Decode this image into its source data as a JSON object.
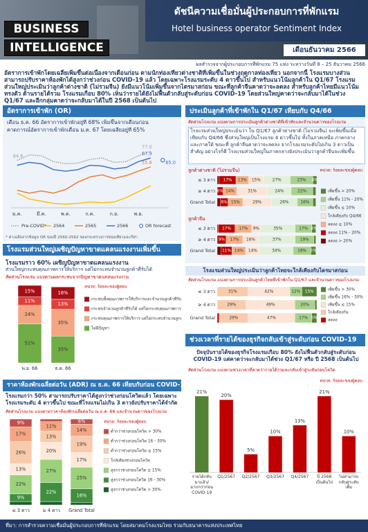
{
  "header": {
    "brand_line1": "BUSINESS",
    "brand_line2": "INTELLIGENCE",
    "title_th": "ดัชนีความเชื่อมั่นผู้ประกอบการที่พักแรม",
    "title_en": "Hotel business operator Sentiment Index",
    "month": "เดือนธันวาคม 2566",
    "survey_note": "ผลสำรวจจากผู้ประกอบการที่พักแรม 75 แห่ง ระหว่างวันที่ 8 – 25 ธันวาคม 2566"
  },
  "summary": "อัตราการเข้าพักโดยเฉลี่ยเพิ่มขึ้นต่อเนื่องจากเดือนก่อน ตามนักท่องเที่ยวต่างชาติที่เพิ่มขึ้นในช่วงฤดูกาลท่องเที่ยว นอกจากนี้ โรงแรมบางส่วนสามารถปรับราคาห้องพักได้สูงกว่าช่วงก่อน COVID-19 แล้ว โดยเฉพาะโรงแรมระดับ 4 ดาวขึ้นไป สำหรับแนวโน้มลูกค้าใน Q1/67 โรงแรมส่วนใหญ่ประเมินว่าลูกค้าต่างชาติ (ไม่รวมจีน) ยังมีแนวโน้มเพิ่มขึ้นจากไตรมาสก่อน ขณะที่ลูกค้าจีนคาดว่าจะลดลง สำหรับลูกค้าไทยมีแนวโน้มทรงตัว ด้านรายได้รวม โรงแรมเกือบ 80% เห็นว่ารายได้ยังไม่ฟื้นตัวกลับสู่ระดับก่อน COVID-19 โดยส่วนใหญ่คาดว่าจะกลับมาได้ในช่วง Q1/67 และอีกกลุ่มคาดว่าจะกลับมาได้ในปี 2568 เป็นต้นไป",
  "occupancy": {
    "heading": "อัตราการเข้าพัก (OR)",
    "lines": [
      "เดือน ธ.ค. 66 อัตราการเข้าพักอยู่ที่ 68% เพิ่มขึ้นจากเดือนก่อน",
      "คาดการณ์อัตราการเข้าพักเดือน ม.ค. 67 โดยเฉลี่ยอยู่ที่ 65%"
    ],
    "chart_data": {
      "type": "line",
      "categories": [
        "ม.ค.",
        null,
        "มี.ค.",
        null,
        "พ.ค.",
        null,
        "ก.ค.",
        null,
        "ก.ย.",
        null,
        "พ.ย.",
        null
      ],
      "ylim": [
        0,
        85
      ],
      "series": [
        {
          "name": "Pre-COVID*",
          "color": "#9e9e9e",
          "style": "dotted",
          "values": [
            64.6,
            72,
            71,
            63,
            60,
            61,
            66,
            68,
            62,
            63,
            71,
            77.0
          ],
          "value_labels": [
            "64.6",
            null,
            null,
            null,
            null,
            null,
            null,
            null,
            null,
            null,
            null,
            "77.0"
          ]
        },
        {
          "name": "2564",
          "color": "#ffc000",
          "values": [
            20,
            12,
            9,
            6,
            5,
            6,
            8,
            7,
            8,
            14,
            22,
            30
          ]
        },
        {
          "name": "2565",
          "color": "#ed7d31",
          "values": [
            24,
            20,
            23,
            20,
            25,
            35,
            42,
            45,
            40,
            44,
            50,
            55.8
          ],
          "value_labels": [
            null,
            null,
            null,
            null,
            null,
            null,
            null,
            null,
            null,
            null,
            null,
            "55.8"
          ]
        },
        {
          "name": "2566",
          "color": "#4472c4",
          "values": [
            58,
            62,
            60,
            52,
            50,
            52,
            58,
            57,
            53,
            55,
            63,
            67.9
          ],
          "value_labels": [
            null,
            null,
            null,
            null,
            null,
            null,
            null,
            null,
            null,
            null,
            null,
            "67.9"
          ]
        }
      ],
      "forecast": {
        "name": "OR forecast",
        "color": "#4472c4",
        "value": 65,
        "value_label": "65.0"
      }
    },
    "footnote": "* ค่าเฉลี่ยจากข้อมูล OR ของปี 2560-2562 ของกระทรวงการท่องเที่ยวและกีฬา"
  },
  "labor": {
    "heading": "โรงแรมส่วนใหญ่เผชิญปัญหาขาดแคลนแรงงานเพิ่มขึ้น",
    "lines": [
      "โรงแรมราว 60% เผชิญปัญหาขาดแคลนแรงงาน",
      "ส่วนใหญ่กระทบคุณภาพการให้บริการ แต่ไม่กระทบจำนวนลูกค้าที่รับได้"
    ],
    "chart_data": {
      "type": "stacked_bar",
      "title": "สัดส่วนโรงแรม แบ่งตามผลกระทบจากปัญหาขาดแคลนแรงงาน",
      "unit": "หน่วย: ร้อยละของผู้ตอบ",
      "categories": [
        "พ.ย. 66",
        "ธ.ค. 66"
      ],
      "series": [
        {
          "name": "ไม่มีปัญหา",
          "color": "#70ad47",
          "values": [
            51,
            35
          ],
          "value_labels": [
            "51%",
            "35%"
          ]
        },
        {
          "name": "กระทบคุณภาพการให้บริการ แต่ไม่กระทบจำนวนลูกค้าที่รับได้",
          "color": "#f4a582",
          "values": [
            24,
            35
          ],
          "value_labels": [
            "24%",
            "35%"
          ]
        },
        {
          "name": "กระทบจำนวนลูกค้าที่รับได้ แต่ไม่กระทบคุณภาพการให้บริการ",
          "color": "#e0403a",
          "values": [
            11,
            13
          ],
          "value_labels": [
            "11%",
            "13%"
          ]
        },
        {
          "name": "กระทบทั้งคุณภาพการให้บริการและจำนวนลูกค้าที่รับได้",
          "color": "#a50f15",
          "values": [
            15,
            16
          ],
          "value_labels": [
            "15%",
            "16%"
          ]
        }
      ]
    }
  },
  "adr": {
    "heading": "ราคาห้องพักเฉลี่ยต่อวัน (ADR) ณ ธ.ค. 66 เทียบกับก่อน COVID-19",
    "text": "โรงแรมกว่า 50% สามารถปรับราคาได้สูงกว่าช่วงก่อนโควิดแล้ว โดยเฉพาะโรงแรมระดับ 4 ดาวขึ้นไป ขณะที่โรงแรมไม่เกิน 3 ดาวยังปรับราคาได้จำกัด",
    "chart_data": {
      "type": "stacked_bar",
      "title": "สัดส่วนโรงแรม แบ่งตามราคาห้องพักเฉลี่ยต่อวัน ณ ธ.ค. 66 และจำนวนดาวของโรงแรม",
      "unit": "หน่วย: ร้อยละของผู้ตอบ",
      "categories": [
        "≤ 3 ดาว",
        "≥ 4 ดาว",
        "Grand Total"
      ],
      "series": [
        {
          "name": "สูงกว่าช่วงก่อนโควิด > 30%",
          "color": "#1e5b2e",
          "values": [
            4,
            4,
            3
          ],
          "value_labels": [
            null,
            null,
            null
          ]
        },
        {
          "name": "สูงกว่าช่วงก่อนโควิด 16 - 30%",
          "color": "#3f8f3f",
          "values": [
            9,
            22,
            16
          ],
          "value_labels": [
            "9%",
            "22%",
            "16%"
          ]
        },
        {
          "name": "สูงกว่าช่วงก่อนโควิด ≤ 15%",
          "color": "#9bd17a",
          "values": [
            22,
            27,
            25
          ],
          "value_labels": [
            "22%",
            "27%",
            "25%"
          ]
        },
        {
          "name": "ใกล้เคียงช่วงก่อนโควิด",
          "color": "#fde9d9",
          "values": [
            13,
            20,
            17
          ],
          "value_labels": [
            "13%",
            "20%",
            "17%"
          ]
        },
        {
          "name": "ต่ำกว่าช่วงก่อนโควิด ≤ 15%",
          "color": "#f8cbad",
          "values": [
            26,
            13,
            19
          ],
          "value_labels": [
            "26%",
            "13%",
            "19%"
          ]
        },
        {
          "name": "ต่ำกว่าช่วงก่อนโควิด 16 - 30%",
          "color": "#f4a582",
          "values": [
            17,
            11,
            14
          ],
          "value_labels": [
            "17%",
            "11%",
            "14%"
          ]
        },
        {
          "name": "ต่ำกว่าช่วงก่อนโควิด > 30%",
          "color": "#c0504d",
          "values": [
            9,
            3,
            6
          ],
          "value_labels": [
            "9%",
            null,
            "6%"
          ]
        }
      ]
    }
  },
  "guests": {
    "heading": "ประเมินลูกค้าที่เข้าพักใน Q1/67 เทียบกับ Q4/66",
    "text": "โรงแรมส่วนใหญ่ประเมินว่า ใน Q1/67 ลูกค้าต่างชาติ (ไม่รวมจีน) จะเพิ่มขึ้นเมื่อเทียบกับ Q4/66 ซึ่งส่วนใหญ่เป็นโรงแรม 4 ดาวขึ้นไป ทั้งในภาคเหนือ ภาคกลาง และภาคใต้ ขณะที่ ลูกค้าจีนคาดว่าจะลดลง จากโรงแรมระดับไม่เกิน 3 ดาวเป็นสำคัญ อย่างไรก็ดี โรงแรมส่วนใหญ่ในภาคกลางยังประเมินว่าลูกค้าจีนจะเพิ่มขึ้น",
    "chart_data": {
      "type": "stacked_barh",
      "title": "สัดส่วนโรงแรม แบ่งตามการประเมินลูกค้าต่างชาติที่เข้าพักและจำนวนดาวของโรงแรม",
      "unit": "หน่วย: ร้อยละของผู้ตอบ",
      "groups": [
        {
          "label": "ลูกค้าต่างชาติ (ไม่รวมจีน)",
          "categories": [
            "≤ 3 ดาว",
            "≥ 4 ดาว",
            "Grand Total"
          ]
        },
        {
          "label": "ลูกค้าจีน",
          "categories": [
            "≤ 3 ดาว",
            "≥ 4 ดาว",
            "Grand Total"
          ]
        }
      ],
      "series": [
        {
          "name": "ลดลง > 20%",
          "color": "#7f0000",
          "values": [
            2,
            0,
            3,
            1,
            0,
            4
          ],
          "value_labels": [
            null,
            null,
            null,
            null,
            null,
            null
          ]
        },
        {
          "name": "ลดลง 11% - 20%",
          "color": "#c00000",
          "values": [
            17,
            6,
            8,
            17,
            9,
            11
          ],
          "value_labels": [
            "17%",
            "6%",
            "8%",
            "17%",
            "9%",
            "11%"
          ]
        },
        {
          "name": "ลดลง ≤ 10%",
          "color": "#f4b183",
          "values": [
            13,
            14,
            15,
            17,
            17,
            14
          ],
          "value_labels": [
            "13%",
            "14%",
            "15%",
            "17%",
            "17%",
            "14%"
          ]
        },
        {
          "name": "ใกล้เคียงกับ Q4/66",
          "color": "#fbe5d6",
          "values": [
            15,
            31,
            29,
            9,
            16,
            14
          ],
          "value_labels": [
            "15%",
            "31%",
            "29%",
            "9%",
            "16%",
            "14%"
          ]
        },
        {
          "name": "เพิ่มขึ้น ≤ 10%",
          "color": "#e2efda",
          "values": [
            27,
            24,
            26,
            35,
            37,
            34
          ],
          "value_labels": [
            "27%",
            "24%",
            "26%",
            "35%",
            "37%",
            "34%"
          ]
        },
        {
          "name": "เพิ่มขึ้น 11% - 20%",
          "color": "#a9d18e",
          "values": [
            23,
            22,
            16,
            17,
            19,
            18
          ],
          "value_labels": [
            "23%",
            "22%",
            "16%",
            "17%",
            "19%",
            "18%"
          ]
        },
        {
          "name": "เพิ่มขึ้น > 20%",
          "color": "#548235",
          "values": [
            4,
            3,
            3,
            4,
            2,
            5
          ],
          "value_labels": [
            "4%",
            null,
            null,
            "4%",
            null,
            "5%"
          ]
        }
      ]
    }
  },
  "thai_guests": {
    "heading": "โรงแรมส่วนใหญ่ประเมินว่าลูกค้าไทยจะใกล้เคียงกับไตรมาสก่อน",
    "chart_data": {
      "type": "stacked_barh",
      "title": "สัดส่วนโรงแรม แบ่งตามการประเมินลูกค้าไทยที่เข้าพักใน Q1/67 และจำนวนดาวของโรงแรม",
      "categories": [
        "≤ 3 ดาว",
        "≥ 4 ดาว",
        "Grand Total"
      ],
      "series": [
        {
          "name": "ลดลง",
          "color": "#c00000",
          "values": [
            0,
            0,
            2
          ],
          "value_labels": [
            null,
            null,
            null
          ]
        },
        {
          "name": "ใกล้เคียงกัน",
          "color": "#f8cbad",
          "values": [
            31,
            29,
            29
          ],
          "value_labels": [
            "31%",
            "29%",
            "29%"
          ]
        },
        {
          "name": "เพิ่มขึ้น ≤ 15%",
          "color": "#fce4d6",
          "values": [
            42,
            49,
            47
          ],
          "value_labels": [
            "42%",
            "49%",
            "47%"
          ]
        },
        {
          "name": "เพิ่มขึ้น 16% - 30%",
          "color": "#a9d18e",
          "values": [
            12,
            20,
            17
          ],
          "value_labels": [
            "12%",
            "20%",
            "17%"
          ]
        },
        {
          "name": "เพิ่มขึ้น > 30%",
          "color": "#548235",
          "values": [
            15,
            2,
            5
          ],
          "value_labels": [
            "15%",
            null,
            "5%"
          ]
        }
      ]
    }
  },
  "revenue": {
    "heading": "ช่วงเวลาที่รายได้ของธุรกิจกลับเข้าสู่ระดับก่อน COVID-19",
    "text": "ปัจจุบันรายได้ของธุรกิจโรงแรมเกือบ 80% ยังไม่ฟื้นตัวกลับสู่ระดับก่อน COVID-19 แต่คาดว่าจะกลับมาได้ช่วง Q1/67 หรือ ปี 2568 เป็นต้นไป",
    "chart_data": {
      "type": "bar",
      "title": "สัดส่วนโรงแรม แบ่งตามช่วงเวลาที่คาดว่ารายได้รวมจะกลับเข้าสู่ระดับก่อนโควิด",
      "unit": "หน่วย: ร้อยละของผู้ตอบ",
      "categories": [
        "รายได้กลับมาแล้ว/มากกว่าก่อน COVID-19",
        "Q1/2567",
        "Q2/2567",
        "Q3/2567",
        "Q4/2567",
        "ปี 2568 เป็นต้นไป",
        "ไม่สามารถกลับสู่ระดับเดิม"
      ],
      "values": [
        21,
        20,
        5,
        10,
        13,
        21,
        10
      ],
      "value_labels": [
        "21%",
        "20%",
        "5%",
        "10%",
        "13%",
        "21%",
        "10%"
      ],
      "colors": [
        "#548235",
        "#c00000",
        "#c00000",
        "#c00000",
        "#c00000",
        "#c00000",
        "#c00000"
      ]
    }
  },
  "footer": "ที่มา: การสำรวจความเชื่อมั่นผู้ประกอบการที่พักแรม โดยสมาคมโรงแรมไทย ร่วมกับธนาคารแห่งประเทศไทย"
}
